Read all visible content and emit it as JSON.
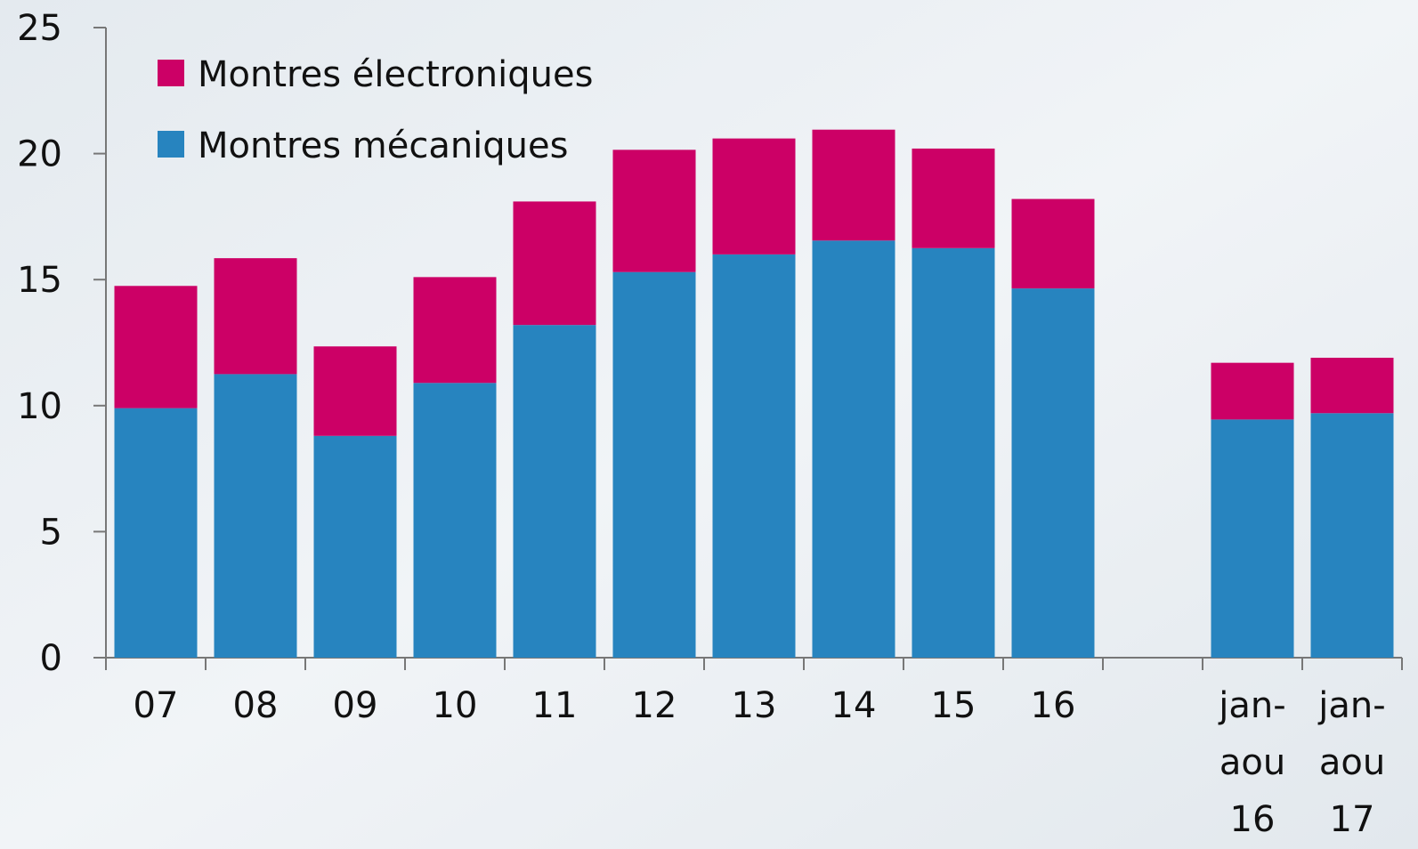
{
  "chart_data": {
    "type": "stacked_bar",
    "categories": [
      "07",
      "08",
      "09",
      "10",
      "11",
      "12",
      "13",
      "14",
      "15",
      "16",
      null,
      "jan- aou 16",
      "jan- aou 17"
    ],
    "series": [
      {
        "name": "Montres mécaniques",
        "color": "#2784bf",
        "values": [
          9.9,
          11.25,
          8.8,
          10.9,
          13.2,
          15.3,
          16.0,
          16.55,
          16.25,
          14.65,
          null,
          9.45,
          9.7
        ]
      },
      {
        "name": "Montres électroniques",
        "color": "#cc0066",
        "values": [
          4.85,
          4.6,
          3.55,
          4.2,
          4.9,
          4.85,
          4.6,
          4.4,
          3.95,
          3.55,
          null,
          2.25,
          2.2
        ]
      }
    ],
    "ylim": [
      0,
      25
    ],
    "yticks": [
      0,
      5,
      10,
      15,
      20,
      25
    ],
    "legend": "top-left"
  }
}
